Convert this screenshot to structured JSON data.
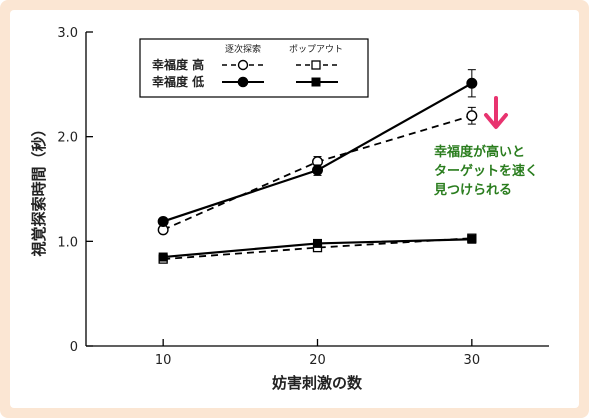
{
  "colors": {
    "background_outer": "#fbe6d3",
    "arrow": "#e8336f",
    "annotation_text": "#2a7d1e",
    "series": "#000000"
  },
  "chart_data": {
    "type": "line",
    "xlabel": "妨害刺激の数",
    "ylabel": "視覚探索時間（秒）",
    "x": [
      10,
      20,
      30
    ],
    "xlim": [
      5,
      35
    ],
    "ylim": [
      0,
      3.0
    ],
    "xticks": [
      "10",
      "20",
      "30"
    ],
    "yticks": [
      "0",
      "1.0",
      "2.0",
      "3.0"
    ],
    "grid": false,
    "legend": {
      "placement": "top-left",
      "column_headers": [
        "逐次探索",
        "ポップアウト"
      ],
      "row_labels": [
        "幸福度 高",
        "幸福度 低"
      ]
    },
    "series": [
      {
        "task": "逐次探索",
        "happiness": "高",
        "marker": "open-circle",
        "line": "dashed",
        "values": [
          1.11,
          1.76,
          2.2
        ],
        "error": [
          0,
          0.05,
          0.08
        ]
      },
      {
        "task": "逐次探索",
        "happiness": "低",
        "marker": "filled-circle",
        "line": "solid",
        "values": [
          1.19,
          1.68,
          2.51
        ],
        "error": [
          0,
          0.05,
          0.13
        ]
      },
      {
        "task": "ポップアウト",
        "happiness": "高",
        "marker": "open-square",
        "line": "dashed",
        "values": [
          0.83,
          0.94,
          1.03
        ],
        "error": [
          0,
          0,
          0
        ]
      },
      {
        "task": "ポップアウト",
        "happiness": "低",
        "marker": "filled-square",
        "line": "solid",
        "values": [
          0.85,
          0.98,
          1.02
        ],
        "error": [
          0,
          0,
          0
        ]
      }
    ],
    "annotation": {
      "lines": [
        "幸福度が高いと",
        "ターゲットを速く",
        "見つけられる"
      ]
    }
  }
}
